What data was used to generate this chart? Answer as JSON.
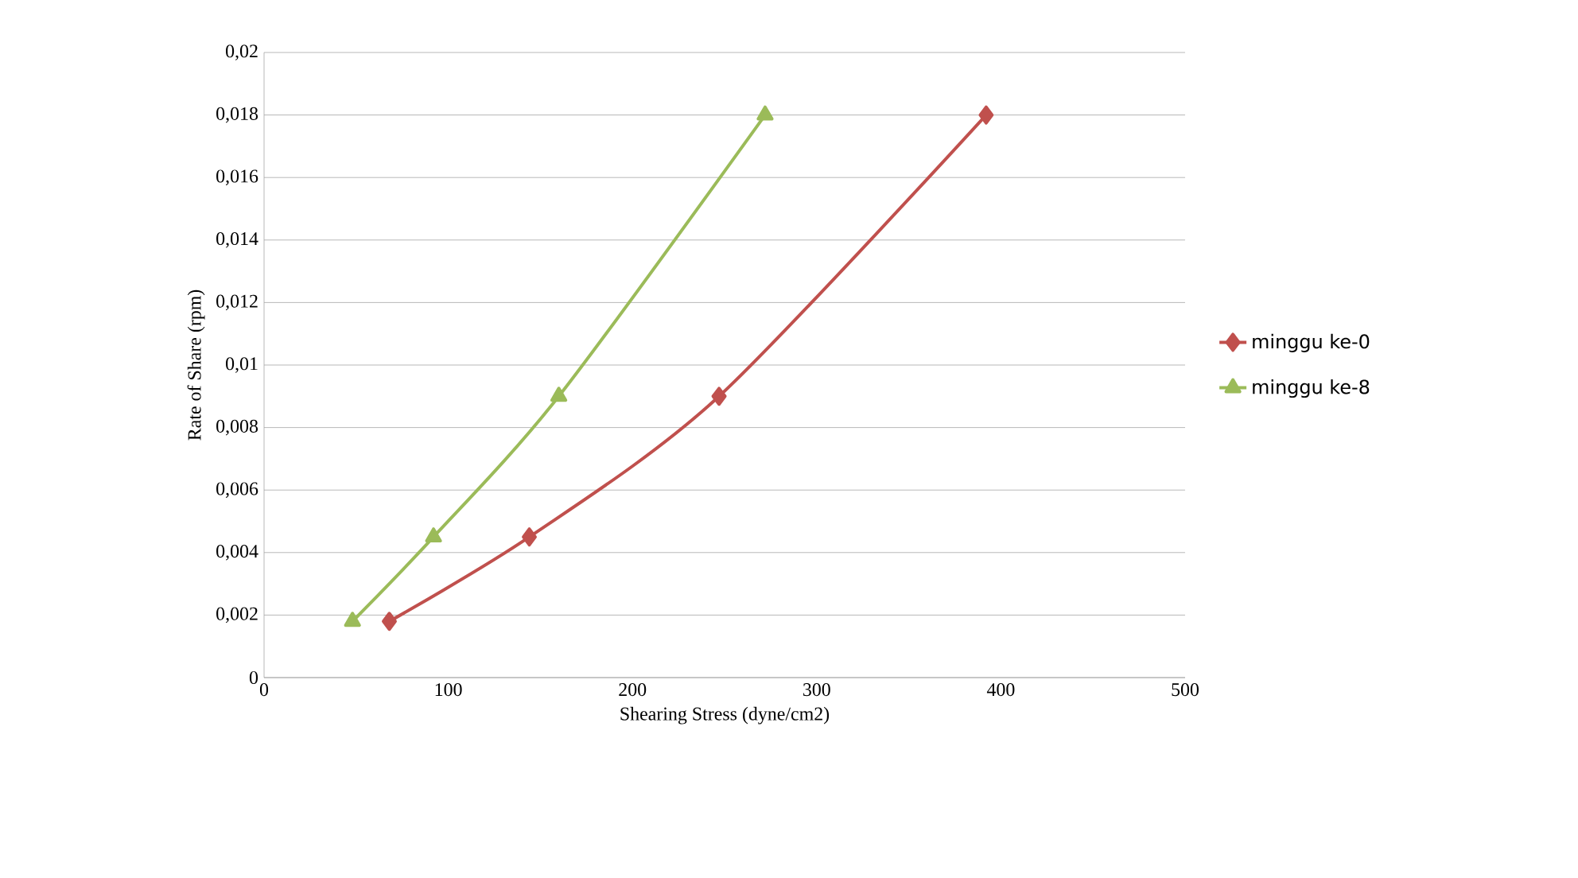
{
  "chart_data": {
    "type": "line",
    "xlabel": "Shearing Stress (dyne/cm2)",
    "ylabel": "Rate of Share (rpm)",
    "series": [
      {
        "name": "minggu ke-0",
        "color": "#c0504d",
        "marker": "diamond",
        "x": [
          68,
          144,
          247,
          392
        ],
        "values": [
          0.0018,
          0.0045,
          0.009,
          0.018
        ]
      },
      {
        "name": "minggu ke-8",
        "color": "#9bbb59",
        "marker": "triangle",
        "x": [
          48,
          92,
          160,
          272
        ],
        "values": [
          0.0018,
          0.0045,
          0.009,
          0.018
        ]
      }
    ],
    "xlim": [
      0,
      500
    ],
    "xticks": [
      0,
      100,
      200,
      300,
      400,
      500
    ],
    "ylim": [
      0,
      0.02
    ],
    "yticks": [
      0,
      {
        "value": 0.002,
        "label": "0,002"
      },
      {
        "value": 0.004,
        "label": "0,004"
      },
      {
        "value": 0.006,
        "label": "0,006"
      },
      {
        "value": 0.008,
        "label": "0,008"
      },
      {
        "value": 0.01,
        "label": "0,01"
      },
      {
        "value": 0.012,
        "label": "0,012"
      },
      {
        "value": 0.014,
        "label": "0,014"
      },
      {
        "value": 0.016,
        "label": "0,016"
      },
      {
        "value": 0.018,
        "label": "0,018"
      },
      {
        "value": 0.02,
        "label": "0,02"
      }
    ],
    "grid": "y",
    "legend": "right"
  }
}
